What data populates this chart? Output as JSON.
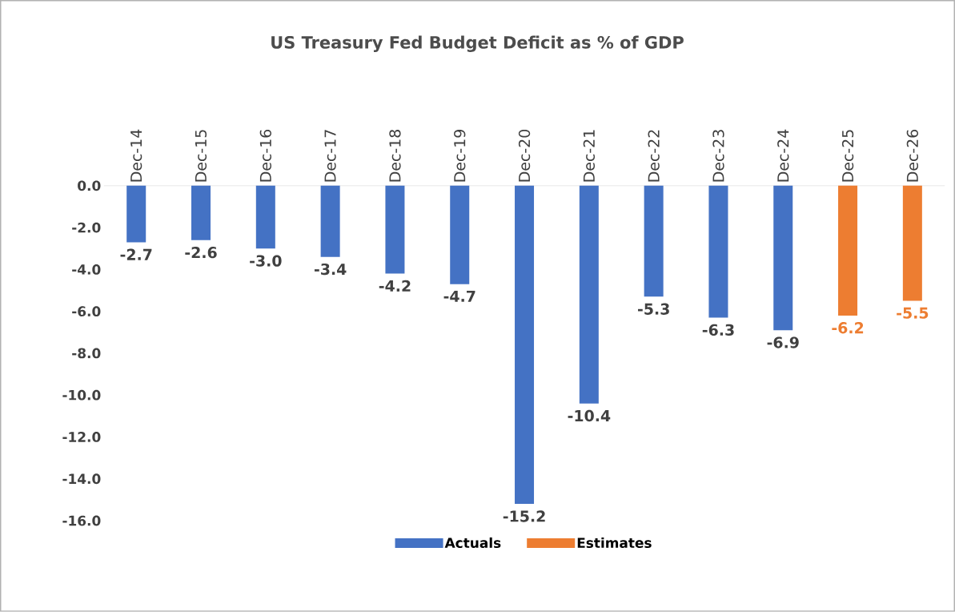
{
  "chart_data": {
    "type": "bar",
    "title": "US Treasury Fed Budget Deficit as % of GDP",
    "categories": [
      "Dec-14",
      "Dec-15",
      "Dec-16",
      "Dec-17",
      "Dec-18",
      "Dec-19",
      "Dec-20",
      "Dec-21",
      "Dec-22",
      "Dec-23",
      "Dec-24",
      "Dec-25",
      "Dec-26"
    ],
    "series": [
      {
        "name": "Actuals",
        "color": "#4472c4",
        "values": [
          -2.7,
          -2.6,
          -3.0,
          -3.4,
          -4.2,
          -4.7,
          -15.2,
          -10.4,
          -5.3,
          -6.3,
          -6.9,
          null,
          null
        ],
        "value_labels": [
          "-2.7",
          "-2.6",
          "-3.0",
          "-3.4",
          "-4.2",
          "-4.7",
          "-15.2",
          "-10.4",
          "-5.3",
          "-6.3",
          "-6.9",
          null,
          null
        ]
      },
      {
        "name": "Estimates",
        "color": "#ed7d31",
        "values": [
          null,
          null,
          null,
          null,
          null,
          null,
          null,
          null,
          null,
          null,
          null,
          -6.2,
          -5.5
        ],
        "value_labels": [
          null,
          null,
          null,
          null,
          null,
          null,
          null,
          null,
          null,
          null,
          null,
          "-6.2",
          "-5.5"
        ]
      }
    ],
    "ylim": [
      -16,
      0
    ],
    "yticks": [
      {
        "value": 0,
        "label": "0.0"
      },
      {
        "value": -2,
        "label": "-2.0"
      },
      {
        "value": -4,
        "label": "-4.0"
      },
      {
        "value": -6,
        "label": "-6.0"
      },
      {
        "value": -8,
        "label": "-8.0"
      },
      {
        "value": -10,
        "label": "-10.0"
      },
      {
        "value": -12,
        "label": "-12.0"
      },
      {
        "value": -14,
        "label": "-14.0"
      },
      {
        "value": -16,
        "label": "-16.0"
      }
    ],
    "legend": "bottom"
  }
}
